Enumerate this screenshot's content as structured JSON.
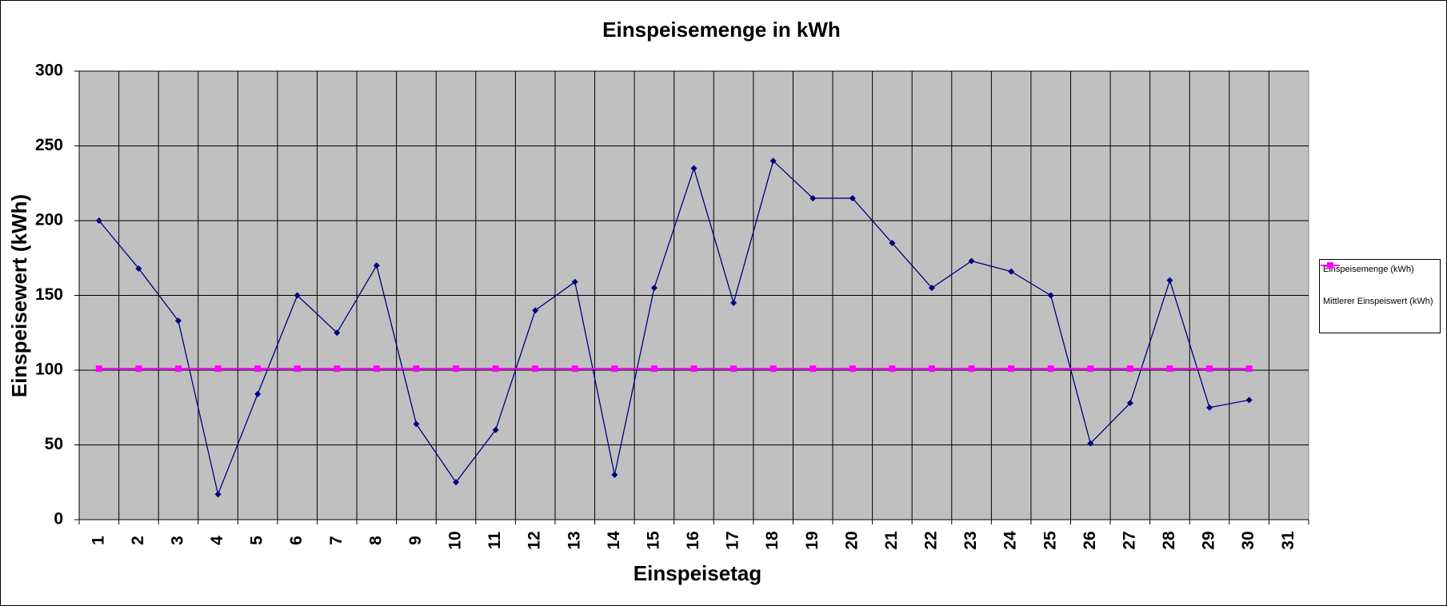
{
  "chart_data": {
    "type": "line",
    "title": "Einspeisemenge in kWh",
    "x_label": "Einspeisetag",
    "y_label": "Einspeisewert  (kWh)",
    "categories": [
      "1",
      "2",
      "3",
      "4",
      "5",
      "6",
      "7",
      "8",
      "9",
      "10",
      "11",
      "12",
      "13",
      "14",
      "15",
      "16",
      "17",
      "18",
      "19",
      "20",
      "21",
      "22",
      "23",
      "24",
      "25",
      "26",
      "27",
      "28",
      "29",
      "30",
      "31"
    ],
    "series": [
      {
        "name": "Einspeisemenge (kWh)",
        "color": "#000080",
        "marker": "diamond",
        "values": [
          200,
          168,
          133,
          17,
          84,
          150,
          125,
          170,
          64,
          25,
          60,
          140,
          159,
          30,
          155,
          235,
          145,
          240,
          215,
          215,
          185,
          155,
          173,
          166,
          150,
          51,
          78,
          160,
          75,
          80,
          null
        ]
      },
      {
        "name": "Mittlerer Einspeiswert (kWh)",
        "color": "#ff00ff",
        "marker": "square",
        "values": [
          101,
          101,
          101,
          101,
          101,
          101,
          101,
          101,
          101,
          101,
          101,
          101,
          101,
          101,
          101,
          101,
          101,
          101,
          101,
          101,
          101,
          101,
          101,
          101,
          101,
          101,
          101,
          101,
          101,
          101,
          null
        ]
      }
    ],
    "ylim": [
      0,
      300
    ],
    "yticks": [
      0,
      50,
      100,
      150,
      200,
      250,
      300
    ],
    "grid": true,
    "plot_background": "#c0c0c0",
    "legend": "right"
  }
}
